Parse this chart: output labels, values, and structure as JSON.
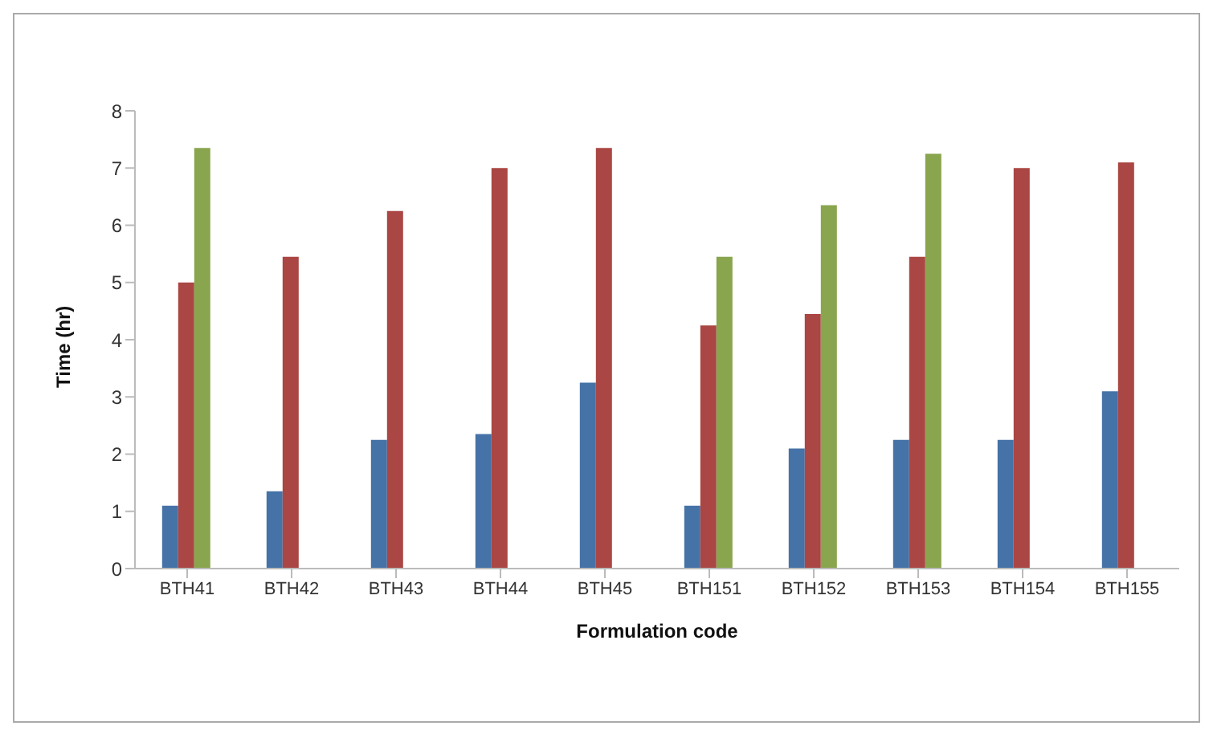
{
  "chart_data": {
    "type": "bar",
    "xlabel": "Formulation code",
    "ylabel": "Time (hr)",
    "categories": [
      "BTH41",
      "BTH42",
      "BTH43",
      "BTH44",
      "BTH45",
      "BTH151",
      "BTH152",
      "BTH153",
      "BTH154",
      "BTH155"
    ],
    "series": [
      {
        "color": "#4572a7",
        "values": [
          1.1,
          1.35,
          2.25,
          2.35,
          3.25,
          1.1,
          2.1,
          2.25,
          2.25,
          3.1
        ]
      },
      {
        "color": "#aa4643",
        "values": [
          5.0,
          5.45,
          6.25,
          7.0,
          7.35,
          4.25,
          4.45,
          5.45,
          7.0,
          7.1
        ]
      },
      {
        "color": "#89a54e",
        "values": [
          7.35,
          null,
          null,
          null,
          null,
          5.45,
          6.35,
          7.25,
          null,
          null
        ]
      }
    ],
    "ylim": [
      0,
      8
    ],
    "yticks": [
      0,
      1,
      2,
      3,
      4,
      5,
      6,
      7,
      8
    ],
    "grid": false,
    "legend": false
  }
}
